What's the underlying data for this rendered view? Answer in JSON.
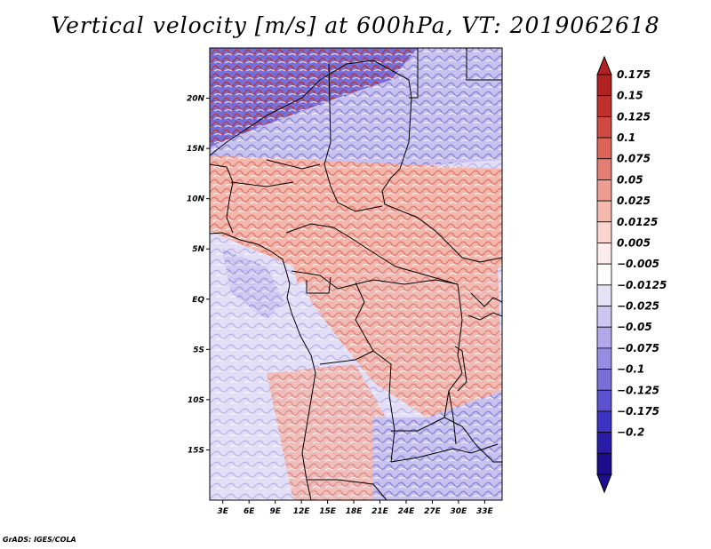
{
  "title": "Vertical velocity [m/s] at 600hPa, VT: 2019062618",
  "footer": "GrADS: IGES/COLA",
  "map": {
    "lat_labels": [
      "20N",
      "15N",
      "10N",
      "5N",
      "EQ",
      "5S",
      "10S",
      "15S"
    ],
    "lat_values": [
      20,
      15,
      10,
      5,
      0,
      -5,
      -10,
      -15
    ],
    "lon_labels": [
      "3E",
      "6E",
      "9E",
      "12E",
      "15E",
      "18E",
      "21E",
      "24E",
      "27E",
      "30E",
      "33E"
    ],
    "lon_values": [
      3,
      6,
      9,
      12,
      15,
      18,
      21,
      24,
      27,
      30,
      33
    ],
    "lat_range": [
      -20,
      25
    ],
    "lon_range": [
      1.5,
      35
    ]
  },
  "colorbar": {
    "labels": [
      "0.175",
      "0.15",
      "0.125",
      "0.1",
      "0.075",
      "0.05",
      "0.025",
      "0.0125",
      "0.005",
      "−0.005",
      "−0.0125",
      "−0.025",
      "−0.05",
      "−0.075",
      "−0.1",
      "−0.125",
      "−0.175",
      "−0.2"
    ],
    "colors": [
      "#b22222",
      "#c0302c",
      "#cf4a43",
      "#dc6558",
      "#e57f73",
      "#ee9d92",
      "#f4b8ae",
      "#fad5cf",
      "#fdeceb",
      "#ffffff",
      "#e7e3f7",
      "#cdc6f0",
      "#b3a9ea",
      "#968ce2",
      "#786fd9",
      "#5a52cf",
      "#3c33c2",
      "#2a1aa8",
      "#1d0d8c"
    ],
    "top_color": "#b22222",
    "bottom_color": "#1d0d8c"
  }
}
